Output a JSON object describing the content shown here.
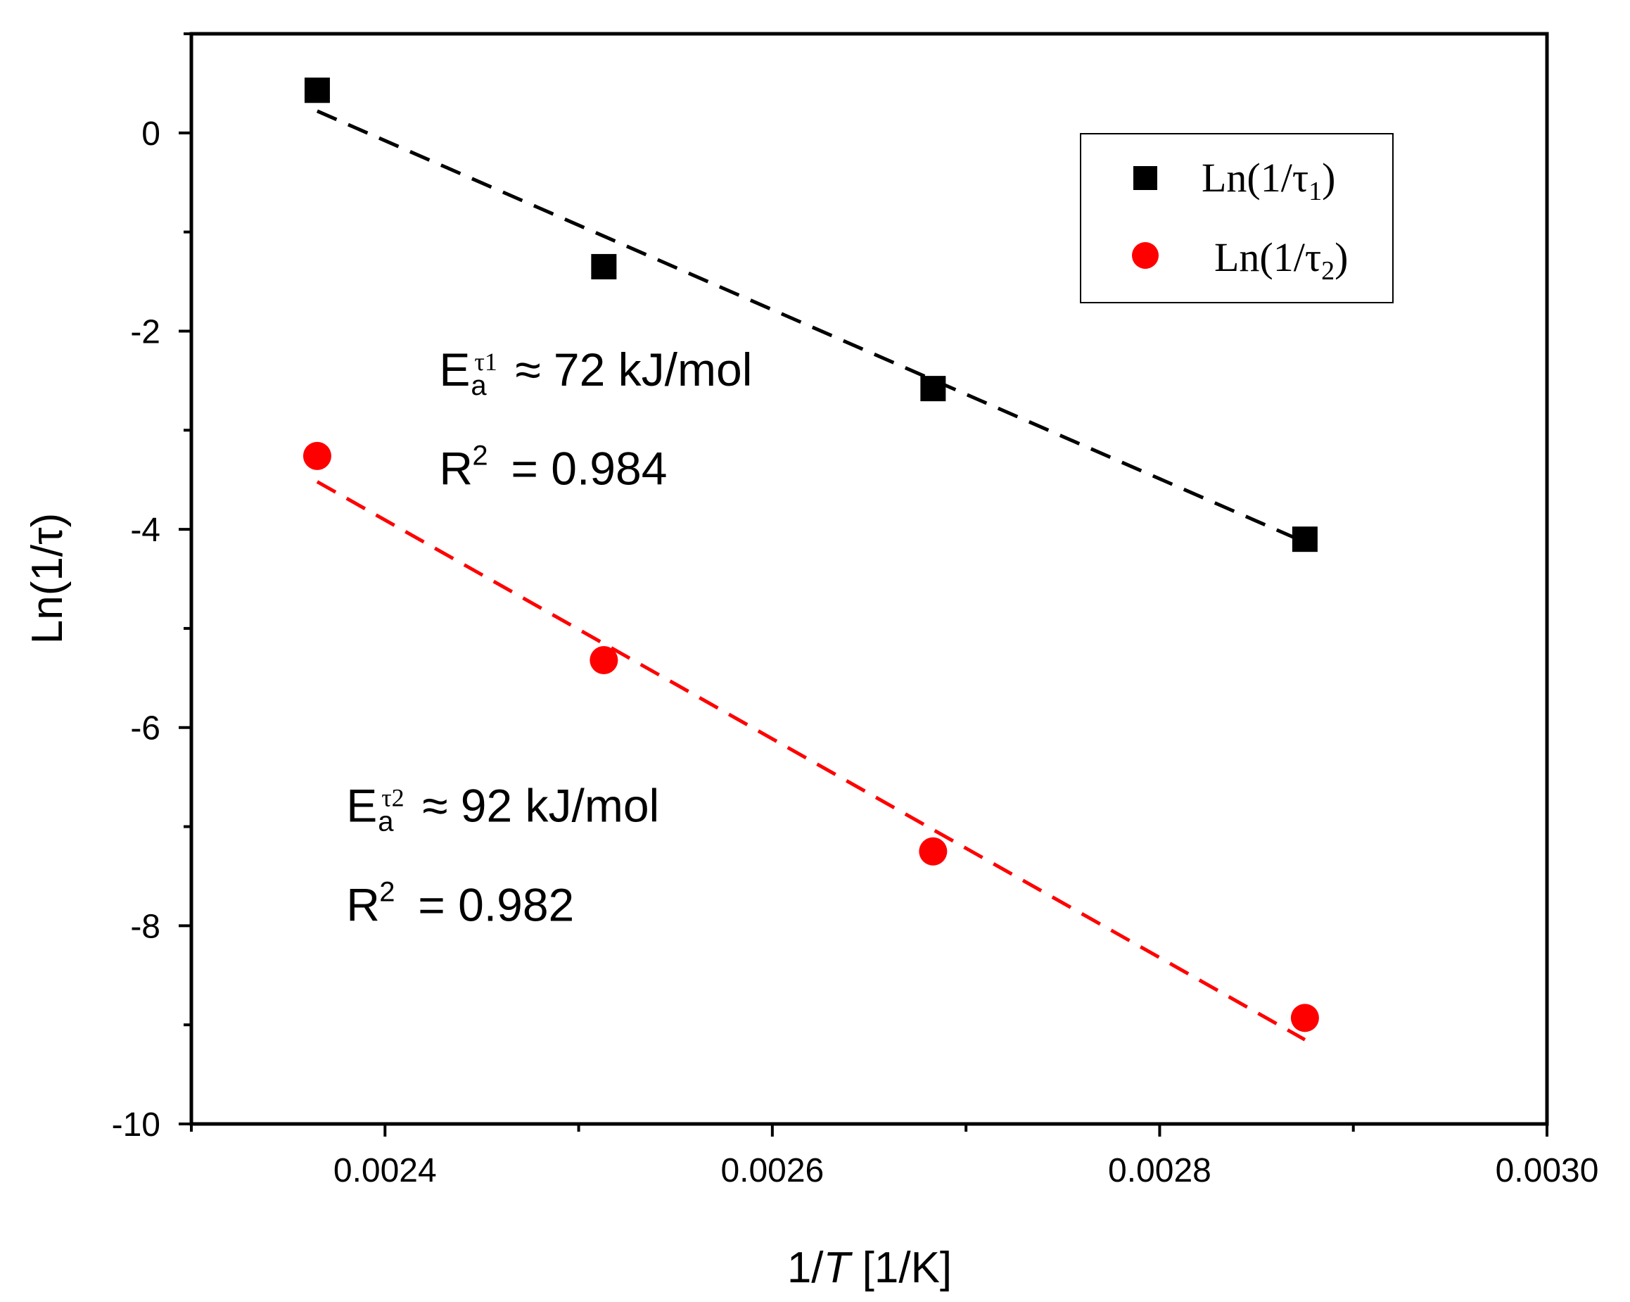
{
  "chart_data": {
    "type": "scatter",
    "xlabel": "1/T [1/K]",
    "xlabel_parts": {
      "pre": "1/",
      "italic": "T",
      "post": " [1/K]"
    },
    "ylabel": "Ln(1/τ)",
    "xlim": [
      0.0023,
      0.003
    ],
    "ylim": [
      -10,
      1
    ],
    "xticks": [
      {
        "value": 0.0024,
        "label": "0.0024"
      },
      {
        "value": 0.0026,
        "label": "0.0026"
      },
      {
        "value": 0.0028,
        "label": "0.0028"
      },
      {
        "value": 0.003,
        "label": "0.0030"
      }
    ],
    "yticks": [
      {
        "value": 0,
        "label": "0"
      },
      {
        "value": -2,
        "label": "-2"
      },
      {
        "value": -4,
        "label": "-4"
      },
      {
        "value": -6,
        "label": "-6"
      },
      {
        "value": -8,
        "label": "-8"
      },
      {
        "value": -10,
        "label": "-10"
      }
    ],
    "x_minor_ticks": [
      0.0023,
      0.0025,
      0.0027,
      0.0029
    ],
    "y_minor_ticks": [
      1,
      -1,
      -3,
      -5,
      -7,
      -9
    ],
    "legend_position": "top-right",
    "series": [
      {
        "name": "Ln(1/τ1)",
        "legend_main": "Ln(1/τ",
        "legend_sub": "1",
        "legend_close": ")",
        "marker": "square",
        "color": "#000000",
        "x": [
          0.002365,
          0.002513,
          0.002683,
          0.002875
        ],
        "y": [
          0.43,
          -1.35,
          -2.58,
          -4.1
        ],
        "fit": {
          "x0": 0.002365,
          "y0": 0.22,
          "x1": 0.002875,
          "y1": -4.13
        }
      },
      {
        "name": "Ln(1/τ2)",
        "legend_main": "Ln(1/τ",
        "legend_sub": "2",
        "legend_close": ")",
        "marker": "circle",
        "color": "#ff0000",
        "x": [
          0.002365,
          0.002513,
          0.002683,
          0.002875
        ],
        "y": [
          -3.26,
          -5.32,
          -7.25,
          -8.93
        ],
        "fit": {
          "x0": 0.002365,
          "y0": -3.52,
          "x1": 0.002875,
          "y1": -9.15
        }
      }
    ],
    "annotations": [
      {
        "main": "E",
        "sub": "a",
        "sup": "τ1",
        "value": "≈ 72 kJ/mol",
        "r2_label": "R",
        "r2_exp": "2",
        "r2_value": "= 0.984",
        "anchor_x": 0.002428,
        "anchor_y": -2.55,
        "r2_anchor_y": -3.55
      },
      {
        "main": "E",
        "sub": "a",
        "sup": "τ2",
        "value": "≈ 92 kJ/mol",
        "r2_label": "R",
        "r2_exp": "2",
        "r2_value": "= 0.982",
        "anchor_x": 0.00238,
        "anchor_y": -6.95,
        "r2_anchor_y": -7.95
      }
    ]
  }
}
